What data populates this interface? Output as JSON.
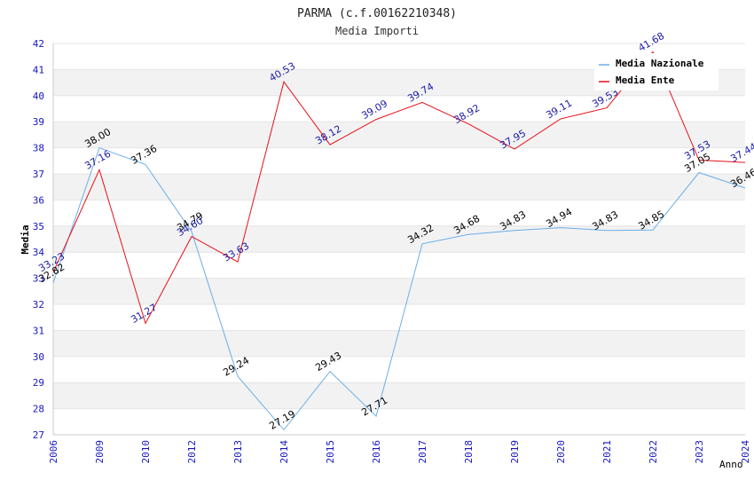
{
  "chart_data": {
    "type": "line",
    "title": "PARMA (c.f.00162210348)",
    "subtitle": "Media Importi",
    "xlabel": "Anno",
    "ylabel": "Media",
    "ylim": [
      27,
      42
    ],
    "yticks": [
      "27",
      "28",
      "29",
      "30",
      "31",
      "32",
      "33",
      "34",
      "35",
      "36",
      "37",
      "38",
      "39",
      "40",
      "41",
      "42"
    ],
    "categories": [
      "2006",
      "2009",
      "2010",
      "2012",
      "2013",
      "2014",
      "2015",
      "2016",
      "2017",
      "2018",
      "2019",
      "2020",
      "2021",
      "2022",
      "2023",
      "2024"
    ],
    "grid": "horizontal bands",
    "legend_position": "top-right",
    "series": [
      {
        "name": "Media Nazionale",
        "color": "#6aaee8",
        "label_color": "#000000",
        "values": [
          32.82,
          38.0,
          37.36,
          34.79,
          29.24,
          27.19,
          29.43,
          27.71,
          34.32,
          34.68,
          34.83,
          34.94,
          34.83,
          34.85,
          37.05,
          36.46
        ],
        "labels": [
          "32.82",
          "38.00",
          "37.36",
          "34.79",
          "29.24",
          "27.19",
          "29.43",
          "27.71",
          "34.32",
          "34.68",
          "34.83",
          "34.94",
          "34.83",
          "34.85",
          "37.05",
          "36.46"
        ]
      },
      {
        "name": "Media Ente",
        "color": "#e8101a",
        "label_color": "#1a1aa6",
        "values": [
          33.23,
          37.16,
          31.27,
          34.6,
          33.63,
          40.53,
          38.12,
          39.09,
          39.74,
          38.92,
          37.95,
          39.11,
          39.53,
          41.68,
          37.53,
          37.44
        ],
        "labels": [
          "33.23",
          "37.16",
          "31.27",
          "34.60",
          "33.63",
          "40.53",
          "38.12",
          "39.09",
          "39.74",
          "38.92",
          "37.95",
          "39.11",
          "39.53",
          "41.68",
          "37.53",
          "37.44"
        ]
      }
    ]
  }
}
